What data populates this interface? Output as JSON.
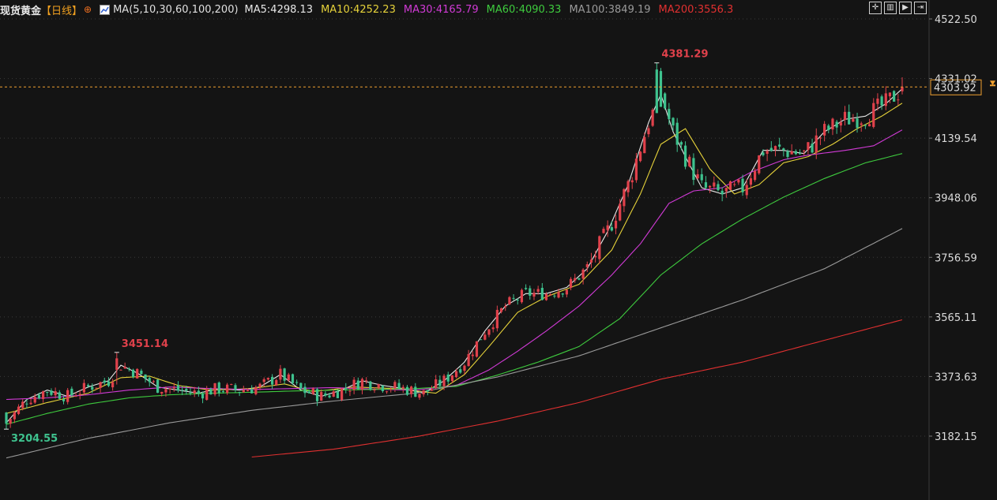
{
  "header": {
    "symbol": "现货黄金",
    "period": "【日线】",
    "target_icon": "crosshair-icon",
    "ma_params": "MA(5,10,30,60,100,200)",
    "ma_items": [
      {
        "label": "MA5:4298.13",
        "color": "#e8e8e8"
      },
      {
        "label": "MA10:4252.23",
        "color": "#e6d23a"
      },
      {
        "label": "MA30:4165.79",
        "color": "#d13ad6"
      },
      {
        "label": "MA60:4090.33",
        "color": "#3ecb3e"
      },
      {
        "label": "MA100:3849.19",
        "color": "#9a9a9a"
      },
      {
        "label": "MA200:3556.3",
        "color": "#e03030"
      }
    ]
  },
  "toolbar": [
    "expand-icon",
    "chart-type-icon",
    "play-icon",
    "next-icon"
  ],
  "chart_data": {
    "type": "candlestick",
    "symbol": "现货黄金",
    "period": "日线",
    "y_axis_ticks": [
      4522.5,
      4331.02,
      4139.54,
      3948.06,
      3756.59,
      3565.11,
      3373.63,
      3182.15
    ],
    "y_axis_labels": [
      "4522.50",
      "4331.02",
      "4139.54",
      "3948.06",
      "3756.59",
      "3565.11",
      "3373.63",
      "3182.15"
    ],
    "ylim": [
      3110,
      4600
    ],
    "current_price": 4303.92,
    "current_price_label": "4303.92",
    "annotations": [
      {
        "label": "4381.29",
        "value": 4381.29,
        "kind": "high",
        "index": 159
      },
      {
        "label": "3451.14",
        "value": 3451.14,
        "kind": "high",
        "index": 27
      },
      {
        "label": "3204.55",
        "value": 3204.55,
        "kind": "low",
        "index": 0
      }
    ],
    "colors": {
      "up": "#e0414b",
      "down": "#3ec28e",
      "background": "#141414",
      "grid": "#3a3a3a",
      "price_line": "#f0a030"
    },
    "ma_series": [
      {
        "name": "MA5",
        "color": "#e8e8e8",
        "points": [
          [
            0,
            3225
          ],
          [
            5,
            3300
          ],
          [
            10,
            3330
          ],
          [
            15,
            3310
          ],
          [
            20,
            3340
          ],
          [
            25,
            3360
          ],
          [
            28,
            3410
          ],
          [
            32,
            3385
          ],
          [
            37,
            3340
          ],
          [
            42,
            3330
          ],
          [
            47,
            3320
          ],
          [
            52,
            3335
          ],
          [
            57,
            3330
          ],
          [
            62,
            3340
          ],
          [
            67,
            3380
          ],
          [
            72,
            3330
          ],
          [
            77,
            3310
          ],
          [
            82,
            3330
          ],
          [
            87,
            3360
          ],
          [
            92,
            3345
          ],
          [
            97,
            3335
          ],
          [
            102,
            3320
          ],
          [
            107,
            3360
          ],
          [
            112,
            3420
          ],
          [
            117,
            3520
          ],
          [
            122,
            3600
          ],
          [
            127,
            3640
          ],
          [
            132,
            3640
          ],
          [
            137,
            3660
          ],
          [
            142,
            3720
          ],
          [
            147,
            3840
          ],
          [
            152,
            3990
          ],
          [
            157,
            4190
          ],
          [
            160,
            4280
          ],
          [
            163,
            4160
          ],
          [
            166,
            4080
          ],
          [
            170,
            3980
          ],
          [
            175,
            3960
          ],
          [
            180,
            3980
          ],
          [
            185,
            4100
          ],
          [
            190,
            4100
          ],
          [
            195,
            4090
          ],
          [
            200,
            4160
          ],
          [
            205,
            4200
          ],
          [
            210,
            4210
          ],
          [
            215,
            4250
          ],
          [
            219,
            4298
          ]
        ]
      },
      {
        "name": "MA10",
        "color": "#e6d23a",
        "points": [
          [
            0,
            3255
          ],
          [
            10,
            3290
          ],
          [
            20,
            3320
          ],
          [
            28,
            3370
          ],
          [
            35,
            3375
          ],
          [
            42,
            3345
          ],
          [
            50,
            3330
          ],
          [
            60,
            3335
          ],
          [
            68,
            3350
          ],
          [
            75,
            3325
          ],
          [
            85,
            3340
          ],
          [
            95,
            3335
          ],
          [
            105,
            3320
          ],
          [
            112,
            3380
          ],
          [
            118,
            3470
          ],
          [
            125,
            3580
          ],
          [
            132,
            3630
          ],
          [
            140,
            3670
          ],
          [
            148,
            3780
          ],
          [
            155,
            3960
          ],
          [
            160,
            4120
          ],
          [
            166,
            4170
          ],
          [
            172,
            4040
          ],
          [
            178,
            3960
          ],
          [
            184,
            3990
          ],
          [
            190,
            4060
          ],
          [
            196,
            4080
          ],
          [
            202,
            4120
          ],
          [
            208,
            4170
          ],
          [
            214,
            4210
          ],
          [
            219,
            4252
          ]
        ]
      },
      {
        "name": "MA30",
        "color": "#d13ad6",
        "points": [
          [
            0,
            3300
          ],
          [
            10,
            3305
          ],
          [
            20,
            3315
          ],
          [
            30,
            3330
          ],
          [
            40,
            3340
          ],
          [
            50,
            3335
          ],
          [
            60,
            3332
          ],
          [
            70,
            3335
          ],
          [
            80,
            3338
          ],
          [
            90,
            3333
          ],
          [
            100,
            3330
          ],
          [
            110,
            3345
          ],
          [
            118,
            3395
          ],
          [
            125,
            3455
          ],
          [
            132,
            3520
          ],
          [
            140,
            3600
          ],
          [
            148,
            3700
          ],
          [
            155,
            3800
          ],
          [
            162,
            3930
          ],
          [
            168,
            3970
          ],
          [
            175,
            3980
          ],
          [
            182,
            4030
          ],
          [
            190,
            4070
          ],
          [
            196,
            4085
          ],
          [
            205,
            4100
          ],
          [
            212,
            4115
          ],
          [
            219,
            4166
          ]
        ]
      },
      {
        "name": "MA60",
        "color": "#3ecb3e",
        "points": [
          [
            0,
            3220
          ],
          [
            10,
            3255
          ],
          [
            20,
            3285
          ],
          [
            30,
            3305
          ],
          [
            40,
            3315
          ],
          [
            50,
            3320
          ],
          [
            60,
            3323
          ],
          [
            70,
            3327
          ],
          [
            80,
            3330
          ],
          [
            90,
            3332
          ],
          [
            100,
            3335
          ],
          [
            110,
            3342
          ],
          [
            120,
            3378
          ],
          [
            130,
            3420
          ],
          [
            140,
            3470
          ],
          [
            150,
            3560
          ],
          [
            160,
            3700
          ],
          [
            170,
            3800
          ],
          [
            180,
            3880
          ],
          [
            190,
            3950
          ],
          [
            200,
            4010
          ],
          [
            210,
            4060
          ],
          [
            219,
            4090
          ]
        ]
      },
      {
        "name": "MA100",
        "color": "#9a9a9a",
        "points": [
          [
            0,
            3112
          ],
          [
            20,
            3175
          ],
          [
            40,
            3225
          ],
          [
            60,
            3265
          ],
          [
            80,
            3295
          ],
          [
            100,
            3320
          ],
          [
            120,
            3372
          ],
          [
            140,
            3440
          ],
          [
            160,
            3530
          ],
          [
            180,
            3620
          ],
          [
            200,
            3720
          ],
          [
            219,
            3849
          ]
        ]
      },
      {
        "name": "MA200",
        "color": "#e03030",
        "points": [
          [
            60,
            3115
          ],
          [
            80,
            3140
          ],
          [
            100,
            3180
          ],
          [
            120,
            3230
          ],
          [
            140,
            3290
          ],
          [
            160,
            3365
          ],
          [
            180,
            3420
          ],
          [
            200,
            3490
          ],
          [
            219,
            3556
          ]
        ]
      }
    ]
  }
}
